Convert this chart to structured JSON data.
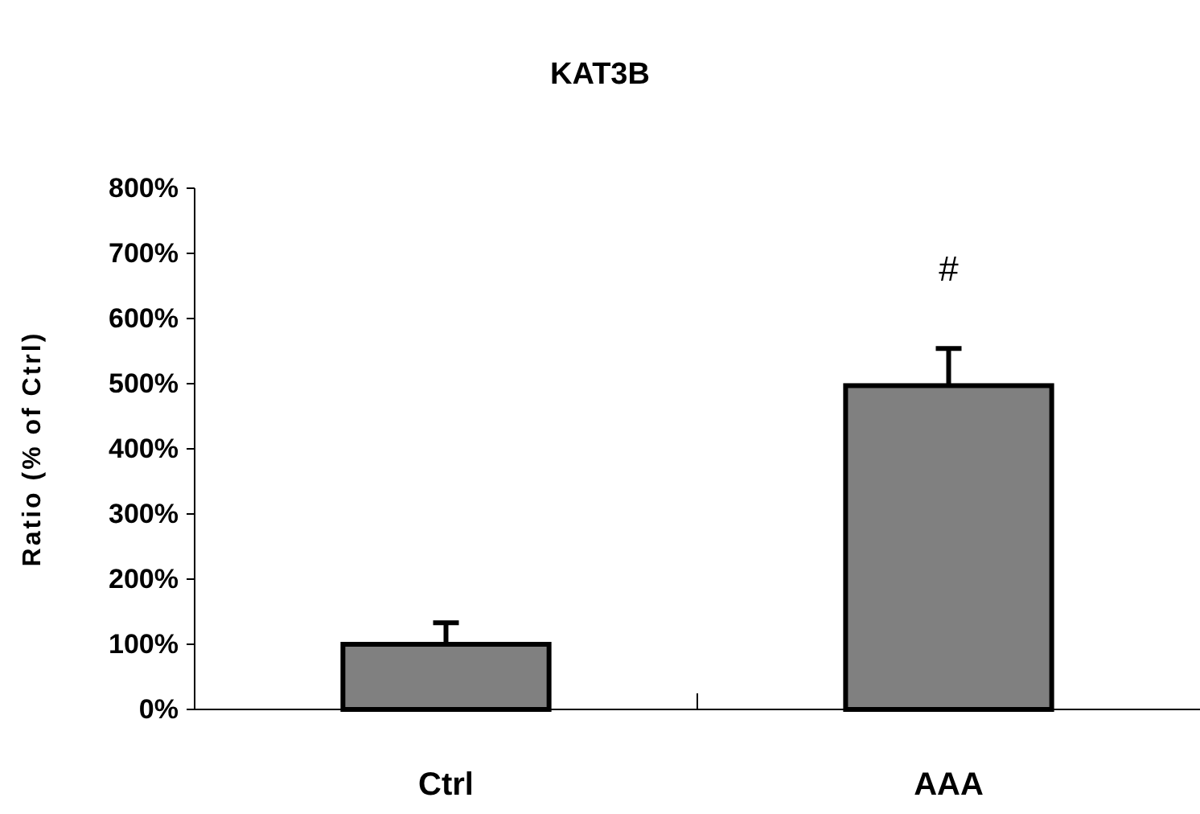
{
  "chart_data": {
    "type": "bar",
    "title": "KAT3B",
    "ylabel": "Ratio (% of Ctrl)",
    "categories": [
      "Ctrl",
      "AAA"
    ],
    "values": [
      100,
      497
    ],
    "errors": [
      [
        100,
        133
      ],
      [
        497,
        554
      ]
    ],
    "color": "#808080",
    "ylim": [
      0,
      800
    ],
    "yticks": [
      {
        "value": 0,
        "label": "0%"
      },
      {
        "value": 100,
        "label": "100%"
      },
      {
        "value": 200,
        "label": "200%"
      },
      {
        "value": 300,
        "label": "300%"
      },
      {
        "value": 400,
        "label": "400%"
      },
      {
        "value": 500,
        "label": "500%"
      },
      {
        "value": 600,
        "label": "600%"
      },
      {
        "value": 700,
        "label": "700%"
      },
      {
        "value": 800,
        "label": "800%"
      }
    ],
    "annotations": [
      "#"
    ],
    "grid": false
  }
}
